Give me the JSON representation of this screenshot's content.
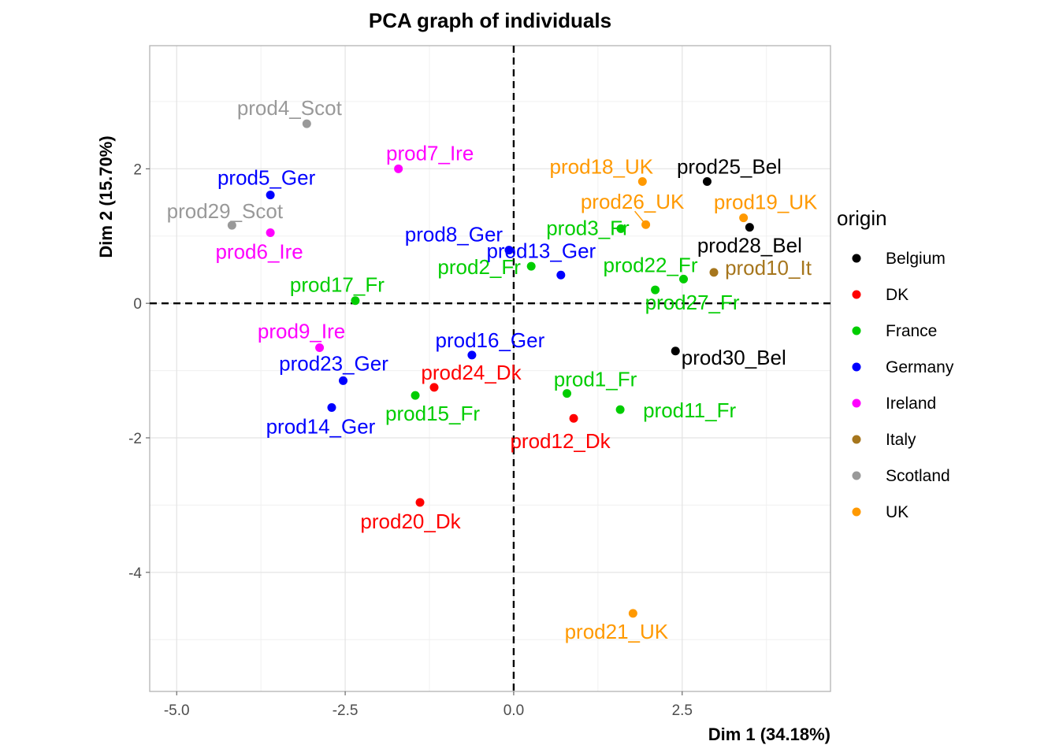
{
  "chart_data": {
    "type": "scatter",
    "title": "PCA graph of individuals",
    "xlabel": "Dim 1 (34.18%)",
    "ylabel": "Dim 2 (15.70%)",
    "xlim": [
      -5.4,
      4.7
    ],
    "ylim": [
      -5.77,
      3.83
    ],
    "x_ticks": [
      -5.0,
      -2.5,
      0.0,
      2.5
    ],
    "x_tick_labels": [
      "-5.0",
      "-2.5",
      "0.0",
      "2.5"
    ],
    "y_ticks": [
      -4,
      -2,
      0,
      2
    ],
    "y_tick_labels": [
      "-4",
      "-2",
      "0",
      "2"
    ],
    "grid": true,
    "reference_lines": {
      "x": 0,
      "y": 0,
      "style": "dashed"
    },
    "legend": {
      "title": "origin",
      "position": "right",
      "entries": [
        {
          "name": "Belgium",
          "color": "#000000"
        },
        {
          "name": "DK",
          "color": "#ff0000"
        },
        {
          "name": "France",
          "color": "#00cd00"
        },
        {
          "name": "Germany",
          "color": "#0000ff"
        },
        {
          "name": "Ireland",
          "color": "#ff00ff"
        },
        {
          "name": "Italy",
          "color": "#a6761d"
        },
        {
          "name": "Scotland",
          "color": "#999999"
        },
        {
          "name": "UK",
          "color": "#ff9900"
        }
      ]
    },
    "points": [
      {
        "label": "prod4_Scot",
        "group": "Scotland",
        "x": -3.07,
        "y": 2.67
      },
      {
        "label": "prod7_Ire",
        "group": "Ireland",
        "x": -1.71,
        "y": 2.0
      },
      {
        "label": "prod5_Ger",
        "group": "Germany",
        "x": -3.61,
        "y": 1.61
      },
      {
        "label": "prod29_Scot",
        "group": "Scotland",
        "x": -4.18,
        "y": 1.16
      },
      {
        "label": "prod6_Ire",
        "group": "Ireland",
        "x": -3.61,
        "y": 1.05
      },
      {
        "label": "prod8_Ger",
        "group": "Germany",
        "x": -0.07,
        "y": 0.79
      },
      {
        "label": "prod17_Fr",
        "group": "France",
        "x": -2.35,
        "y": 0.04
      },
      {
        "label": "prod18_UK",
        "group": "UK",
        "x": 1.91,
        "y": 1.81
      },
      {
        "label": "prod25_Bel",
        "group": "Belgium",
        "x": 2.87,
        "y": 1.81
      },
      {
        "label": "prod26_UK",
        "group": "UK",
        "x": 1.96,
        "y": 1.17
      },
      {
        "label": "prod19_UK",
        "group": "UK",
        "x": 3.41,
        "y": 1.27
      },
      {
        "label": "prod28_Bel",
        "group": "Belgium",
        "x": 3.5,
        "y": 1.13
      },
      {
        "label": "prod3_Fr",
        "group": "France",
        "x": 1.59,
        "y": 1.11
      },
      {
        "label": "prod2_Fr",
        "group": "France",
        "x": 0.26,
        "y": 0.55
      },
      {
        "label": "prod22_Fr",
        "group": "France",
        "x": 2.52,
        "y": 0.36
      },
      {
        "label": "prod10_It",
        "group": "Italy",
        "x": 2.97,
        "y": 0.46
      },
      {
        "label": "prod13_Ger",
        "group": "Germany",
        "x": 0.7,
        "y": 0.42
      },
      {
        "label": "prod27_Fr",
        "group": "France",
        "x": 2.1,
        "y": 0.2
      },
      {
        "label": "prod9_Ire",
        "group": "Ireland",
        "x": -2.88,
        "y": -0.66
      },
      {
        "label": "prod16_Ger",
        "group": "Germany",
        "x": -0.62,
        "y": -0.77
      },
      {
        "label": "prod30_Bel",
        "group": "Belgium",
        "x": 2.4,
        "y": -0.71
      },
      {
        "label": "prod23_Ger",
        "group": "Germany",
        "x": -2.53,
        "y": -1.15
      },
      {
        "label": "prod24_Dk",
        "group": "DK",
        "x": -1.18,
        "y": -1.25
      },
      {
        "label": "prod1_Fr",
        "group": "France",
        "x": 0.79,
        "y": -1.34
      },
      {
        "label": "prod15_Fr",
        "group": "France",
        "x": -1.46,
        "y": -1.37
      },
      {
        "label": "prod11_Fr",
        "group": "France",
        "x": 1.58,
        "y": -1.58
      },
      {
        "label": "prod14_Ger",
        "group": "Germany",
        "x": -2.7,
        "y": -1.55
      },
      {
        "label": "prod12_Dk",
        "group": "DK",
        "x": 0.89,
        "y": -1.71
      },
      {
        "label": "prod20_Dk",
        "group": "DK",
        "x": -1.39,
        "y": -2.96
      },
      {
        "label": "prod21_UK",
        "group": "UK",
        "x": 1.77,
        "y": -4.61
      }
    ]
  }
}
